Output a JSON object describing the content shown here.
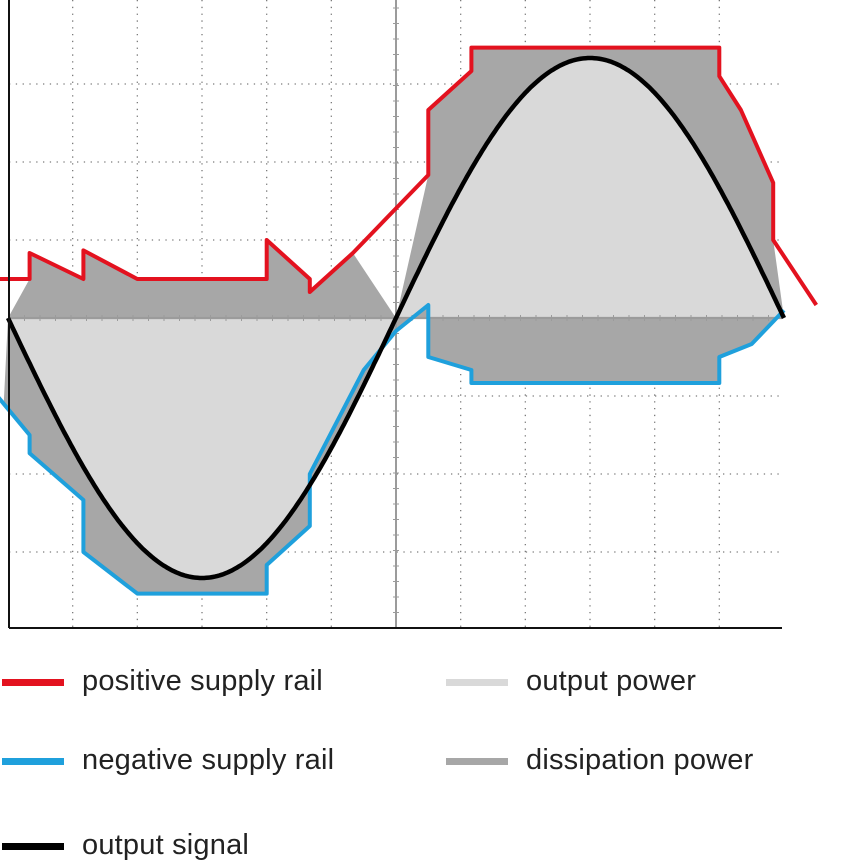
{
  "chart_data": {
    "type": "line",
    "title": "",
    "xlabel": "",
    "ylabel": "",
    "grid": true,
    "grid_style": "dotted",
    "x_range": [
      0,
      360
    ],
    "y_range": [
      -1.2,
      1.2
    ],
    "x_gridlines": [
      30,
      60,
      90,
      120,
      150,
      180,
      210,
      240,
      270,
      300,
      330
    ],
    "y_gridlines": [
      -0.9,
      -0.6,
      -0.3,
      0,
      0.3,
      0.6,
      0.9
    ],
    "series": [
      {
        "name": "output signal",
        "kind": "line",
        "color": "#000000",
        "function": "-sin(x)",
        "samples_x": [
          0,
          30,
          60,
          90,
          120,
          150,
          180,
          210,
          240,
          270,
          300,
          330,
          360
        ],
        "samples_y": [
          0,
          -0.5,
          -0.866,
          -1.0,
          -0.866,
          -0.5,
          0,
          0.5,
          0.866,
          1.0,
          0.866,
          0.5,
          0
        ]
      },
      {
        "name": "positive supply rail",
        "kind": "line",
        "color": "#e3121f",
        "points": [
          [
            -150,
            0.15
          ],
          [
            10,
            0.15
          ],
          [
            10,
            0.25
          ],
          [
            35,
            0.15
          ],
          [
            35,
            0.26
          ],
          [
            60,
            0.15
          ],
          [
            120,
            0.15
          ],
          [
            120,
            0.3
          ],
          [
            140,
            0.15
          ],
          [
            140,
            0.1
          ],
          [
            160,
            0.25
          ],
          [
            195,
            0.55
          ],
          [
            195,
            0.8
          ],
          [
            215,
            0.95
          ],
          [
            215,
            1.04
          ],
          [
            330,
            1.04
          ],
          [
            330,
            0.93
          ],
          [
            340,
            0.8
          ],
          [
            355,
            0.52
          ],
          [
            355,
            0.3
          ],
          [
            375,
            0.05
          ]
        ]
      },
      {
        "name": "negative supply rail",
        "kind": "line",
        "color": "#1fa0dc",
        "points": [
          [
            -20,
            -0.15
          ],
          [
            10,
            -0.45
          ],
          [
            10,
            -0.52
          ],
          [
            35,
            -0.7
          ],
          [
            35,
            -0.9
          ],
          [
            60,
            -1.06
          ],
          [
            120,
            -1.06
          ],
          [
            120,
            -0.95
          ],
          [
            140,
            -0.8
          ],
          [
            140,
            -0.6
          ],
          [
            165,
            -0.2
          ],
          [
            180,
            -0.05
          ],
          [
            195,
            0.05
          ],
          [
            195,
            -0.15
          ],
          [
            215,
            -0.2
          ],
          [
            215,
            -0.25
          ],
          [
            330,
            -0.25
          ],
          [
            330,
            -0.15
          ],
          [
            345,
            -0.1
          ],
          [
            360,
            0.03
          ]
        ]
      },
      {
        "name": "output power",
        "kind": "area",
        "color": "#d9d9d9",
        "between": [
          "output signal",
          "zero"
        ]
      },
      {
        "name": "dissipation power",
        "kind": "area",
        "color": "#a7a7a7",
        "between": [
          "supply rail",
          "output signal"
        ]
      }
    ]
  },
  "legend": {
    "items": [
      {
        "label": "positive supply rail",
        "color": "#e3121f"
      },
      {
        "label": "negative supply rail",
        "color": "#1fa0dc"
      },
      {
        "label": "output signal",
        "color": "#000000"
      },
      {
        "label": "output power",
        "color": "#d9d9d9"
      },
      {
        "label": "dissipation power",
        "color": "#a7a7a7"
      }
    ]
  }
}
